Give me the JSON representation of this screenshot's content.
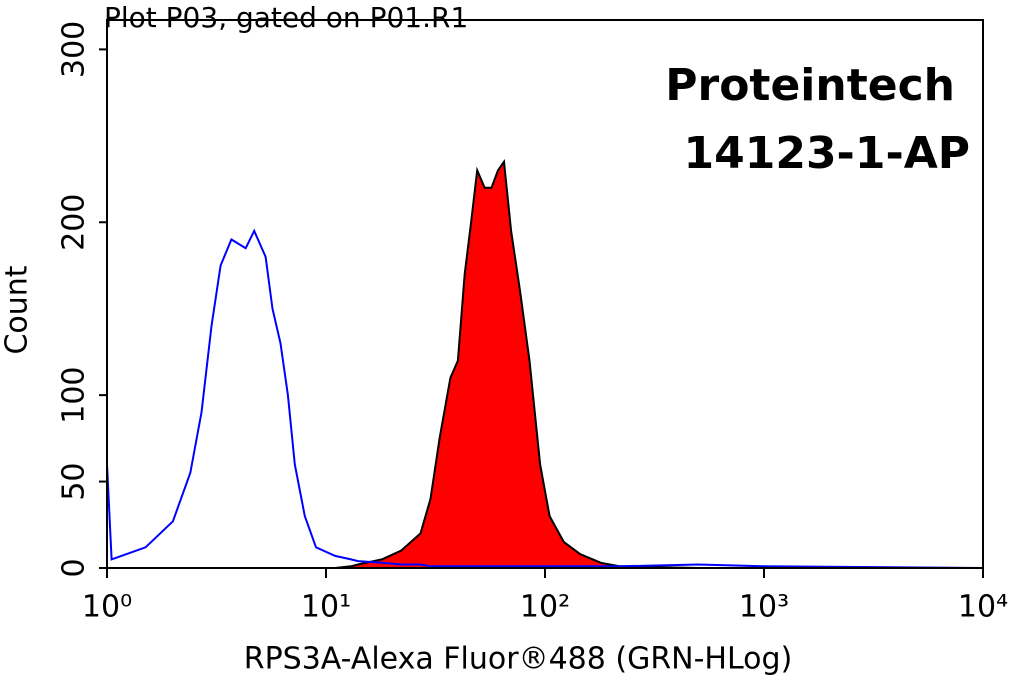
{
  "chart_data": {
    "type": "histogram-overlay",
    "title": "Plot P03, gated on P01.R1",
    "annotations": [
      "Proteintech",
      "14123-1-AP"
    ],
    "x_label": "RPS3A-Alexa Fluor®488 (GRN-HLog)",
    "y_label": "Count",
    "x_scale": "log",
    "xlim": [
      1,
      10000
    ],
    "xticks": [
      {
        "value": 1,
        "label": "10⁰"
      },
      {
        "value": 10,
        "label": "10¹"
      },
      {
        "value": 100,
        "label": "10²"
      },
      {
        "value": 1000,
        "label": "10³"
      },
      {
        "value": 10000,
        "label": "10⁴"
      }
    ],
    "ylim": [
      0,
      317
    ],
    "yticks": [
      0,
      50,
      100,
      200,
      300
    ],
    "x": [
      1,
      1.05,
      1.5,
      2,
      2.4,
      2.7,
      3,
      3.3,
      3.7,
      4.3,
      4.7,
      5.3,
      5.7,
      6.2,
      6.7,
      7.2,
      8,
      9,
      11,
      13,
      14,
      18,
      22,
      27,
      30,
      33,
      37,
      40,
      43,
      46,
      49,
      53,
      57,
      61,
      65,
      70,
      77,
      85,
      95,
      105,
      122,
      145,
      180,
      220,
      500,
      1000,
      10000
    ],
    "series": [
      {
        "color": "#0000ff",
        "fill": false,
        "values": [
          60,
          5,
          12,
          27,
          55,
          90,
          140,
          175,
          190,
          185,
          195,
          180,
          150,
          130,
          100,
          60,
          30,
          12,
          7,
          5,
          4,
          3,
          2,
          2,
          1,
          1,
          1,
          1,
          1,
          1,
          1,
          1,
          1,
          1,
          1,
          1,
          1,
          1,
          1,
          1,
          1,
          1,
          1,
          1,
          2,
          1,
          0
        ]
      },
      {
        "color": "#ff0000",
        "fill": true,
        "values": [
          0,
          0,
          0,
          0,
          0,
          0,
          0,
          0,
          0,
          0,
          0,
          0,
          0,
          0,
          0,
          0,
          0,
          0,
          0,
          1,
          2,
          5,
          10,
          20,
          40,
          75,
          110,
          120,
          170,
          200,
          230,
          220,
          220,
          230,
          235,
          195,
          160,
          120,
          60,
          30,
          15,
          8,
          3,
          1,
          0,
          0,
          0
        ]
      }
    ]
  }
}
